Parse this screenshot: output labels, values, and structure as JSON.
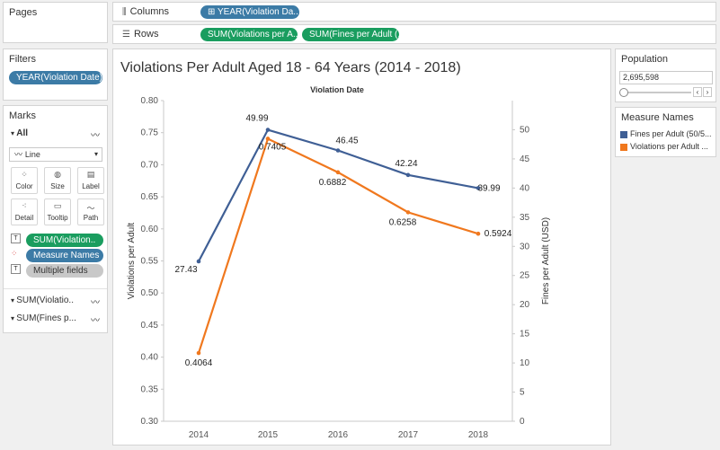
{
  "pages": {
    "title": "Pages"
  },
  "columns": {
    "label": "Columns",
    "pill": "YEAR(Violation Da.."
  },
  "rows": {
    "label": "Rows",
    "pills": [
      "SUM(Violations per A..",
      "SUM(Fines per Adult (.."
    ]
  },
  "filters": {
    "title": "Filters",
    "pill": "YEAR(Violation Date)"
  },
  "marks": {
    "title": "Marks",
    "all_label": "All",
    "mark_type": "Line",
    "buttons": [
      "Color",
      "Size",
      "Label",
      "Detail",
      "Tooltip",
      "Path"
    ],
    "fields": [
      "SUM(Violation..",
      "Measure Names",
      "Multiple fields"
    ],
    "measures": [
      "SUM(Violatio..",
      "SUM(Fines p..."
    ]
  },
  "population": {
    "title": "Population",
    "value": "2,695,598"
  },
  "legend": {
    "title": "Measure Names",
    "items": [
      {
        "label": "Fines per Adult (50/5...",
        "color": "#3f5f95"
      },
      {
        "label": "Violations per Adult ...",
        "color": "#f0781e"
      }
    ]
  },
  "chart_data": {
    "type": "line",
    "title": "Violations Per Adult Aged 18 - 64 Years (2014 - 2018)",
    "xlabel": "Violation Date",
    "categories": [
      "2014",
      "2015",
      "2016",
      "2017",
      "2018"
    ],
    "ylabel_left": "Violations per Adult",
    "ylabel_right": "Fines per Adult (USD)",
    "ylim_left": [
      0.3,
      0.8
    ],
    "ylim_right": [
      0,
      55
    ],
    "yticks_left": [
      "0.30",
      "0.35",
      "0.40",
      "0.45",
      "0.50",
      "0.55",
      "0.60",
      "0.65",
      "0.70",
      "0.75",
      "0.80"
    ],
    "yticks_right": [
      "0",
      "5",
      "10",
      "15",
      "20",
      "25",
      "30",
      "35",
      "40",
      "45",
      "50"
    ],
    "series": [
      {
        "name": "Fines per Adult (50/5...",
        "axis": "right",
        "color": "#3f5f95",
        "values": [
          27.43,
          49.99,
          46.45,
          42.24,
          39.99
        ],
        "labels": [
          "27.43",
          "49.99",
          "46.45",
          "42.24",
          "39.99"
        ]
      },
      {
        "name": "Violations per Adult ...",
        "axis": "left",
        "color": "#f0781e",
        "values": [
          0.4064,
          0.7405,
          0.6882,
          0.6258,
          0.5924
        ],
        "labels": [
          "0.4064",
          "0.7405",
          "0.6882",
          "0.6258",
          "0.5924"
        ]
      }
    ]
  }
}
